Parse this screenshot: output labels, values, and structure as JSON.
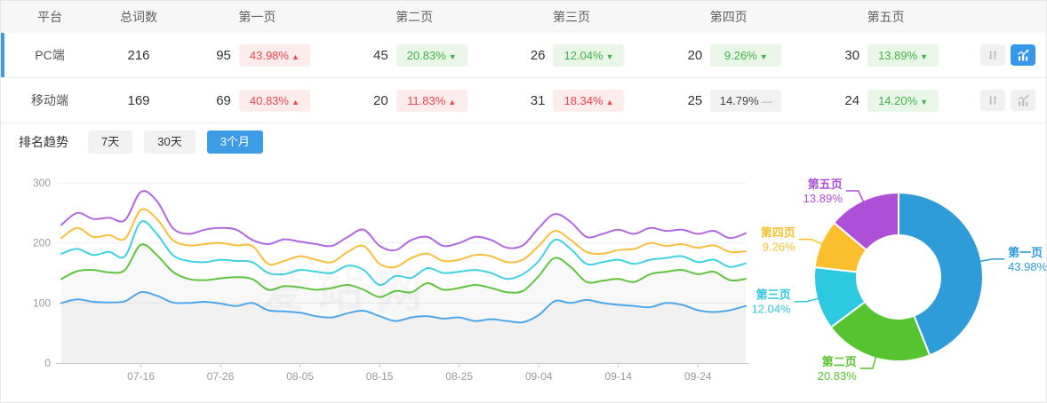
{
  "table": {
    "columns": [
      "平台",
      "总词数",
      "第一页",
      "第二页",
      "第三页",
      "第四页",
      "第五页"
    ],
    "rows": [
      {
        "platform": "PC端",
        "total": "216",
        "active": true,
        "pages": [
          {
            "count": "95",
            "pct": "43.98%",
            "dir": "up"
          },
          {
            "count": "45",
            "pct": "20.83%",
            "dir": "down"
          },
          {
            "count": "26",
            "pct": "12.04%",
            "dir": "down"
          },
          {
            "count": "20",
            "pct": "9.26%",
            "dir": "down"
          },
          {
            "count": "30",
            "pct": "13.89%",
            "dir": "down"
          }
        ]
      },
      {
        "platform": "移动端",
        "total": "169",
        "active": false,
        "pages": [
          {
            "count": "69",
            "pct": "40.83%",
            "dir": "up"
          },
          {
            "count": "20",
            "pct": "11.83%",
            "dir": "up"
          },
          {
            "count": "31",
            "pct": "18.34%",
            "dir": "up"
          },
          {
            "count": "25",
            "pct": "14.79%",
            "dir": "flat"
          },
          {
            "count": "24",
            "pct": "14.20%",
            "dir": "down"
          }
        ]
      }
    ]
  },
  "trend": {
    "title": "排名趋势",
    "tabs": [
      {
        "label": "7天",
        "active": false
      },
      {
        "label": "30天",
        "active": false
      },
      {
        "label": "3个月",
        "active": true
      }
    ]
  },
  "watermark": "爱站网",
  "colors": {
    "accent_blue": "#3d9ce5",
    "badge_up_text": "#f0464b",
    "badge_down_text": "#3eb447",
    "axis_text": "#999999",
    "grid_line": "#ededed"
  },
  "chart_data": [
    {
      "type": "line",
      "title": "排名趋势 3个月",
      "stacked_cumulative": true,
      "ylim": [
        0,
        300
      ],
      "yticks": [
        0,
        100,
        200,
        300
      ],
      "x_tick_labels": [
        "07-16",
        "07-26",
        "08-05",
        "08-15",
        "08-25",
        "09-04",
        "09-14",
        "09-24"
      ],
      "x_tick_indices": [
        5,
        10,
        15,
        20,
        25,
        30,
        35,
        40
      ],
      "grid": "horizontal",
      "legend": "none",
      "series": [
        {
          "name": "第一页",
          "color": "#4fa7e9",
          "area": true,
          "values": [
            100,
            106,
            102,
            101,
            103,
            118,
            112,
            101,
            100,
            102,
            99,
            95,
            100,
            88,
            86,
            84,
            78,
            76,
            83,
            87,
            78,
            70,
            76,
            78,
            74,
            76,
            70,
            73,
            70,
            68,
            80,
            103,
            100,
            105,
            100,
            97,
            95,
            93,
            100,
            97,
            88,
            85,
            88,
            95
          ]
        },
        {
          "name": "第二页",
          "color": "#5fc53f",
          "area": true,
          "values": [
            140,
            153,
            155,
            151,
            155,
            197,
            180,
            152,
            140,
            138,
            141,
            143,
            140,
            122,
            128,
            126,
            122,
            125,
            130,
            122,
            110,
            120,
            118,
            133,
            122,
            125,
            130,
            125,
            118,
            120,
            145,
            175,
            160,
            135,
            137,
            140,
            135,
            148,
            152,
            155,
            148,
            152,
            138,
            140
          ]
        },
        {
          "name": "第三页",
          "color": "#3fd2e3",
          "area": false,
          "values": [
            182,
            190,
            180,
            185,
            178,
            235,
            215,
            180,
            170,
            168,
            172,
            170,
            168,
            150,
            148,
            155,
            152,
            150,
            162,
            155,
            130,
            145,
            142,
            158,
            150,
            152,
            155,
            150,
            140,
            148,
            170,
            205,
            190,
            165,
            168,
            172,
            165,
            172,
            175,
            178,
            168,
            172,
            160,
            166
          ]
        },
        {
          "name": "第四页",
          "color": "#f9be3c",
          "area": false,
          "values": [
            208,
            225,
            210,
            213,
            207,
            255,
            240,
            205,
            196,
            198,
            200,
            196,
            195,
            165,
            170,
            178,
            172,
            168,
            185,
            195,
            165,
            160,
            175,
            182,
            170,
            172,
            180,
            178,
            168,
            172,
            195,
            220,
            205,
            185,
            182,
            188,
            190,
            200,
            195,
            198,
            192,
            196,
            185,
            186
          ]
        },
        {
          "name": "第五页",
          "color": "#b266df",
          "area": false,
          "values": [
            230,
            250,
            240,
            242,
            238,
            285,
            270,
            225,
            215,
            222,
            225,
            222,
            205,
            198,
            206,
            202,
            198,
            195,
            210,
            222,
            195,
            188,
            205,
            210,
            195,
            200,
            210,
            205,
            192,
            196,
            225,
            248,
            235,
            210,
            215,
            222,
            215,
            225,
            220,
            222,
            215,
            220,
            208,
            216
          ]
        }
      ]
    },
    {
      "type": "pie",
      "donut": true,
      "slices": [
        {
          "label": "第一页",
          "pct": "43.98%",
          "value": 43.98,
          "color": "#2e9cd8"
        },
        {
          "label": "第二页",
          "pct": "20.83%",
          "value": 20.83,
          "color": "#55c42e"
        },
        {
          "label": "第三页",
          "pct": "12.04%",
          "value": 12.04,
          "color": "#2cc9e0"
        },
        {
          "label": "第四页",
          "pct": "9.26%",
          "value": 9.26,
          "color": "#fbbf2d"
        },
        {
          "label": "第五页",
          "pct": "13.89%",
          "value": 13.89,
          "color": "#ae4fd8"
        }
      ]
    }
  ]
}
